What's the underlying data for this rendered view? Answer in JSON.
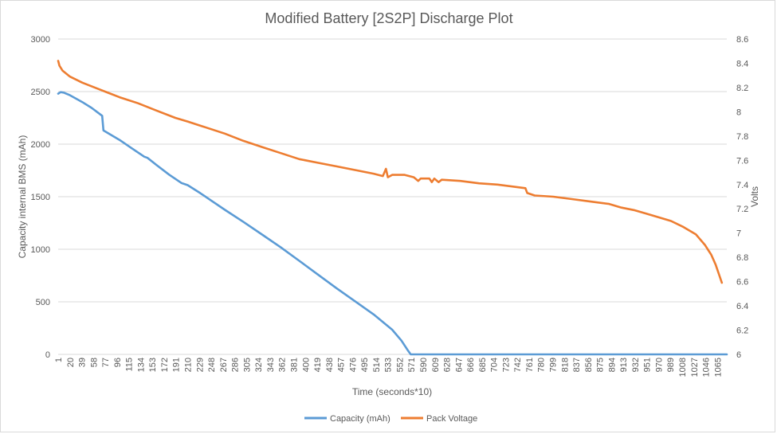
{
  "chart_data": {
    "type": "line",
    "title": "Modified Battery [2S2P] Discharge Plot",
    "xlabel": "Time (seconds*10)",
    "ylabel_left": "Capacity internal BMS (mAh)",
    "ylabel_right": "Volts",
    "x_range": [
      1,
      1080
    ],
    "ylim_left": [
      0,
      3000
    ],
    "ylim_right": [
      6,
      8.6
    ],
    "left_ticks": [
      "0",
      "500",
      "1000",
      "1500",
      "2000",
      "2500",
      "3000"
    ],
    "right_ticks": [
      "6",
      "6.2",
      "6.4",
      "6.6",
      "6.8",
      "7",
      "7.2",
      "7.4",
      "7.6",
      "7.8",
      "8",
      "8.2",
      "8.4",
      "8.6"
    ],
    "x_ticks": [
      "1",
      "20",
      "39",
      "58",
      "77",
      "96",
      "115",
      "134",
      "153",
      "172",
      "191",
      "210",
      "229",
      "248",
      "267",
      "286",
      "305",
      "324",
      "343",
      "362",
      "381",
      "400",
      "419",
      "438",
      "457",
      "476",
      "495",
      "514",
      "533",
      "552",
      "571",
      "590",
      "609",
      "628",
      "647",
      "666",
      "685",
      "704",
      "723",
      "742",
      "761",
      "780",
      "799",
      "818",
      "837",
      "856",
      "875",
      "894",
      "913",
      "932",
      "951",
      "970",
      "989",
      "1008",
      "1027",
      "1046",
      "1065"
    ],
    "grid": "horizontal",
    "legend_position": "bottom",
    "series": [
      {
        "name": "Capacity (mAh)",
        "axis": "left",
        "color": "#5b9bd5",
        "points": [
          [
            1,
            2480
          ],
          [
            5,
            2495
          ],
          [
            10,
            2490
          ],
          [
            20,
            2465
          ],
          [
            40,
            2400
          ],
          [
            55,
            2345
          ],
          [
            72,
            2270
          ],
          [
            74,
            2130
          ],
          [
            80,
            2110
          ],
          [
            100,
            2040
          ],
          [
            120,
            1960
          ],
          [
            140,
            1880
          ],
          [
            145,
            1870
          ],
          [
            160,
            1800
          ],
          [
            180,
            1710
          ],
          [
            200,
            1630
          ],
          [
            210,
            1610
          ],
          [
            230,
            1535
          ],
          [
            250,
            1455
          ],
          [
            270,
            1375
          ],
          [
            300,
            1260
          ],
          [
            330,
            1140
          ],
          [
            360,
            1020
          ],
          [
            390,
            890
          ],
          [
            420,
            760
          ],
          [
            450,
            630
          ],
          [
            480,
            505
          ],
          [
            510,
            380
          ],
          [
            540,
            235
          ],
          [
            555,
            130
          ],
          [
            565,
            40
          ],
          [
            570,
            0
          ],
          [
            1080,
            0
          ]
        ]
      },
      {
        "name": "Pack Voltage",
        "axis": "right",
        "color": "#ed7d31",
        "points": [
          [
            1,
            8.42
          ],
          [
            3,
            8.38
          ],
          [
            8,
            8.34
          ],
          [
            20,
            8.29
          ],
          [
            40,
            8.24
          ],
          [
            60,
            8.2
          ],
          [
            80,
            8.16
          ],
          [
            100,
            8.12
          ],
          [
            130,
            8.07
          ],
          [
            160,
            8.01
          ],
          [
            190,
            7.95
          ],
          [
            210,
            7.92
          ],
          [
            240,
            7.87
          ],
          [
            270,
            7.82
          ],
          [
            300,
            7.76
          ],
          [
            330,
            7.71
          ],
          [
            360,
            7.66
          ],
          [
            390,
            7.61
          ],
          [
            420,
            7.58
          ],
          [
            450,
            7.55
          ],
          [
            480,
            7.52
          ],
          [
            510,
            7.49
          ],
          [
            525,
            7.47
          ],
          [
            530,
            7.53
          ],
          [
            533,
            7.46
          ],
          [
            540,
            7.48
          ],
          [
            560,
            7.48
          ],
          [
            575,
            7.46
          ],
          [
            582,
            7.43
          ],
          [
            586,
            7.45
          ],
          [
            600,
            7.45
          ],
          [
            604,
            7.42
          ],
          [
            608,
            7.45
          ],
          [
            615,
            7.42
          ],
          [
            620,
            7.44
          ],
          [
            650,
            7.43
          ],
          [
            680,
            7.41
          ],
          [
            710,
            7.4
          ],
          [
            740,
            7.38
          ],
          [
            755,
            7.37
          ],
          [
            758,
            7.33
          ],
          [
            770,
            7.31
          ],
          [
            800,
            7.3
          ],
          [
            830,
            7.28
          ],
          [
            860,
            7.26
          ],
          [
            890,
            7.24
          ],
          [
            910,
            7.21
          ],
          [
            930,
            7.19
          ],
          [
            950,
            7.16
          ],
          [
            970,
            7.13
          ],
          [
            990,
            7.1
          ],
          [
            1010,
            7.05
          ],
          [
            1030,
            6.99
          ],
          [
            1045,
            6.9
          ],
          [
            1055,
            6.82
          ],
          [
            1062,
            6.74
          ],
          [
            1068,
            6.65
          ],
          [
            1072,
            6.59
          ]
        ]
      }
    ]
  }
}
